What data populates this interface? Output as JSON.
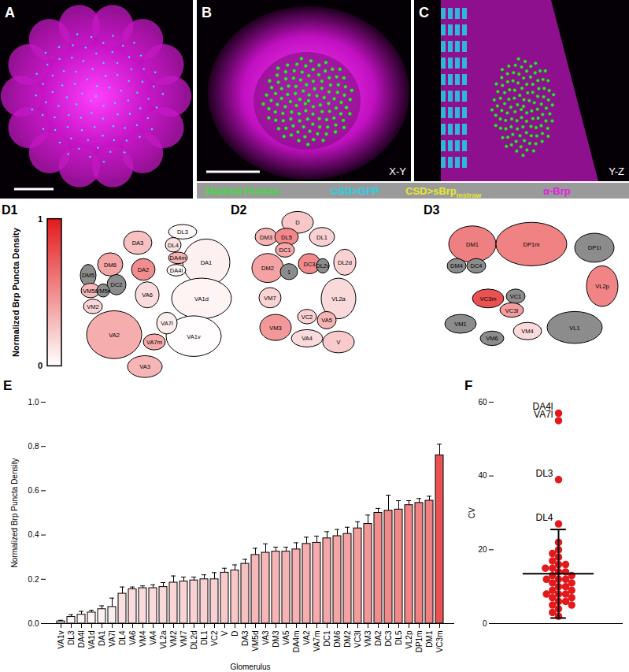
{
  "panels": [
    {
      "label": "A"
    },
    {
      "label": "B",
      "view": "X-Y"
    },
    {
      "label": "C",
      "view": "Y-Z"
    }
  ],
  "image_legend": [
    {
      "text": "Marked Puncta",
      "color": "#3ddc3d"
    },
    {
      "text": "CSD>GFP",
      "color": "#20d4e8"
    },
    {
      "text": "CSD>sBrp",
      "subscript": "mstraw",
      "color": "#e8e82c"
    },
    {
      "text": "α-Brp",
      "color": "#e020e0"
    }
  ],
  "glomerulus_maps": {
    "colorbar": {
      "label": "Normalized Brp Puncta Density",
      "range": [
        0,
        1
      ],
      "ticks": [
        0,
        1
      ],
      "colors": [
        "#ffffff",
        "#e31a1c"
      ]
    },
    "missing_color": "#8c8c8c",
    "maps": [
      {
        "label": "D1",
        "glomeruli": [
          "DL3",
          "DA3",
          "DL4",
          "DA1",
          "DM6",
          "DM5",
          "DA2",
          "DA4m",
          "DA4l",
          "VM5d",
          "DC2",
          "VM5v",
          "VA6",
          "VM2",
          "VA1d",
          "VA1v",
          "VA2",
          "VA7l",
          "VA7m",
          "VA3"
        ]
      },
      {
        "label": "D2",
        "glomeruli": [
          "D",
          "DM3",
          "DL5",
          "DC1",
          "DL1",
          "DM2",
          "1",
          "DC3",
          "DL2v",
          "DL2d",
          "VM7",
          "VL2a",
          "VM3",
          "VC2",
          "VA5",
          "VA4",
          "V"
        ]
      },
      {
        "label": "D3",
        "glomeruli": [
          "DM1",
          "DP1m",
          "DM4",
          "DC4",
          "DP1l",
          "VC3m",
          "VC1",
          "VL2p",
          "VC3l",
          "VM1",
          "VM4",
          "VM6",
          "VL1"
        ]
      }
    ]
  },
  "chart_data": [
    {
      "panel": "E",
      "type": "bar",
      "xlabel": "Glomerulus",
      "ylabel": "Normalized Brp Puncta Density",
      "categories": [
        "VA1v",
        "DL3",
        "DA4l",
        "VA1d",
        "DA1",
        "VA7l",
        "DL4",
        "VA6",
        "VM4",
        "VA4",
        "VL2a",
        "VM2",
        "VM7",
        "DL2d",
        "DL1",
        "VC2",
        "V",
        "D",
        "DA3",
        "VM5d",
        "VA3",
        "DM3",
        "VA5",
        "DA4m",
        "VA2",
        "VA7m",
        "DC1",
        "DM6",
        "DM2",
        "VC3l",
        "VM3",
        "DA2",
        "DC3",
        "DL5",
        "VL2p",
        "DP1m",
        "DM1",
        "VC3m"
      ],
      "values": [
        0.01,
        0.03,
        0.04,
        0.05,
        0.065,
        0.075,
        0.135,
        0.155,
        0.16,
        0.16,
        0.165,
        0.185,
        0.19,
        0.195,
        0.2,
        0.2,
        0.23,
        0.24,
        0.27,
        0.31,
        0.32,
        0.325,
        0.325,
        0.335,
        0.36,
        0.365,
        0.385,
        0.395,
        0.405,
        0.43,
        0.45,
        0.5,
        0.51,
        0.515,
        0.535,
        0.545,
        0.555,
        0.76
      ],
      "errors": [
        0.005,
        0.01,
        0.015,
        0.01,
        0.015,
        0.04,
        0.03,
        0.01,
        0.01,
        0.015,
        0.02,
        0.03,
        0.02,
        0.015,
        0.02,
        0.03,
        0.02,
        0.025,
        0.02,
        0.03,
        0.04,
        0.02,
        0.02,
        0.03,
        0.03,
        0.03,
        0.03,
        0.03,
        0.03,
        0.03,
        0.04,
        0.02,
        0.07,
        0.04,
        0.02,
        0.02,
        0.02,
        0.05
      ],
      "ylim": [
        0,
        1
      ],
      "yticks": [
        {
          "value": 0,
          "label": "0.0"
        },
        0.2,
        0.4,
        0.6,
        0.8,
        {
          "value": 1,
          "label": "1.0"
        }
      ]
    },
    {
      "panel": "F",
      "type": "scatter",
      "ylabel": "CV",
      "values": [
        57,
        55,
        39,
        27,
        22,
        20,
        19,
        18,
        17,
        16,
        16,
        15,
        15,
        14,
        14,
        13,
        13,
        12,
        12,
        12,
        11,
        11,
        10,
        10,
        9,
        9,
        8,
        8,
        8,
        7,
        7,
        6,
        6,
        5,
        5,
        4,
        3,
        2
      ],
      "labels": [
        "DA4l",
        "VA7l",
        "DL3",
        "DL4",
        null,
        null,
        null,
        null,
        null,
        null,
        null,
        null,
        null,
        null,
        null,
        null,
        null,
        null,
        null,
        null,
        null,
        null,
        null,
        null,
        null,
        null,
        null,
        null,
        null,
        null,
        null,
        null,
        null,
        null,
        null,
        null,
        null,
        null
      ],
      "mean": 13.5,
      "sd": 12,
      "color": "#e31a1c",
      "ylim": [
        0,
        60
      ],
      "yticks": [
        0,
        20,
        40,
        60
      ]
    }
  ]
}
